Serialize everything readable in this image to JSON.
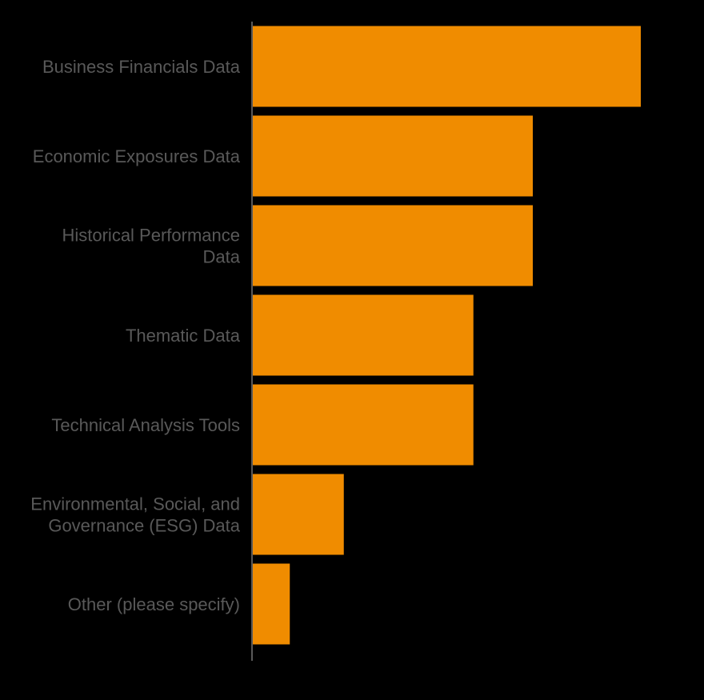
{
  "chart_data": {
    "type": "bar",
    "orientation": "horizontal",
    "title": "",
    "xlabel": "",
    "ylabel": "",
    "categories": [
      [
        "Business Financials Data"
      ],
      [
        "Economic Exposures Data"
      ],
      [
        "Historical Performance",
        "Data"
      ],
      [
        "Thematic Data"
      ],
      [
        "Technical Analysis Tools"
      ],
      [
        "Environmental, Social, and",
        "Governance (ESG) Data"
      ],
      [
        "Other (please specify)"
      ]
    ],
    "values": [
      72,
      52,
      52,
      41,
      41,
      17,
      7
    ],
    "xlim": [
      0,
      80
    ],
    "grid": false,
    "legend": "none",
    "colors": {
      "bar": "#F08C00",
      "axis": "#595959",
      "label": "#595959",
      "background": "#000000"
    }
  }
}
